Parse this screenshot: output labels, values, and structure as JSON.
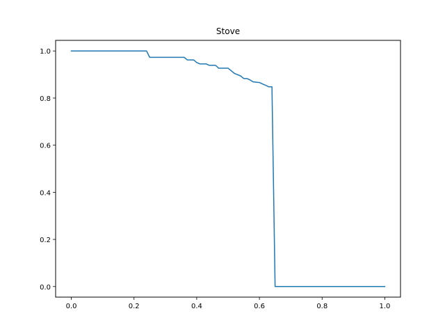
{
  "chart_data": {
    "type": "line",
    "title": "Stove",
    "xlabel": "",
    "ylabel": "",
    "xlim": [
      -0.05,
      1.05
    ],
    "ylim": [
      -0.045,
      1.045
    ],
    "xticks": [
      0.0,
      0.2,
      0.4,
      0.6,
      0.8,
      1.0
    ],
    "xtick_labels": [
      "0.0",
      "0.2",
      "0.4",
      "0.6",
      "0.8",
      "1.0"
    ],
    "yticks": [
      0.0,
      0.2,
      0.4,
      0.6,
      0.8,
      1.0
    ],
    "ytick_labels": [
      "0.0",
      "0.2",
      "0.4",
      "0.6",
      "0.8",
      "1.0"
    ],
    "grid": false,
    "legend": "none",
    "series": [
      {
        "color": "#1f77b4",
        "x": [
          0.0,
          0.24,
          0.25,
          0.36,
          0.37,
          0.39,
          0.4,
          0.41,
          0.43,
          0.44,
          0.46,
          0.47,
          0.5,
          0.51,
          0.52,
          0.54,
          0.55,
          0.56,
          0.57,
          0.58,
          0.6,
          0.61,
          0.63,
          0.64,
          0.65,
          1.0
        ],
        "y": [
          1.0,
          1.0,
          0.973,
          0.973,
          0.962,
          0.962,
          0.951,
          0.945,
          0.945,
          0.939,
          0.939,
          0.927,
          0.927,
          0.916,
          0.905,
          0.894,
          0.883,
          0.883,
          0.877,
          0.869,
          0.866,
          0.86,
          0.848,
          0.848,
          0.0,
          0.0
        ]
      }
    ]
  }
}
